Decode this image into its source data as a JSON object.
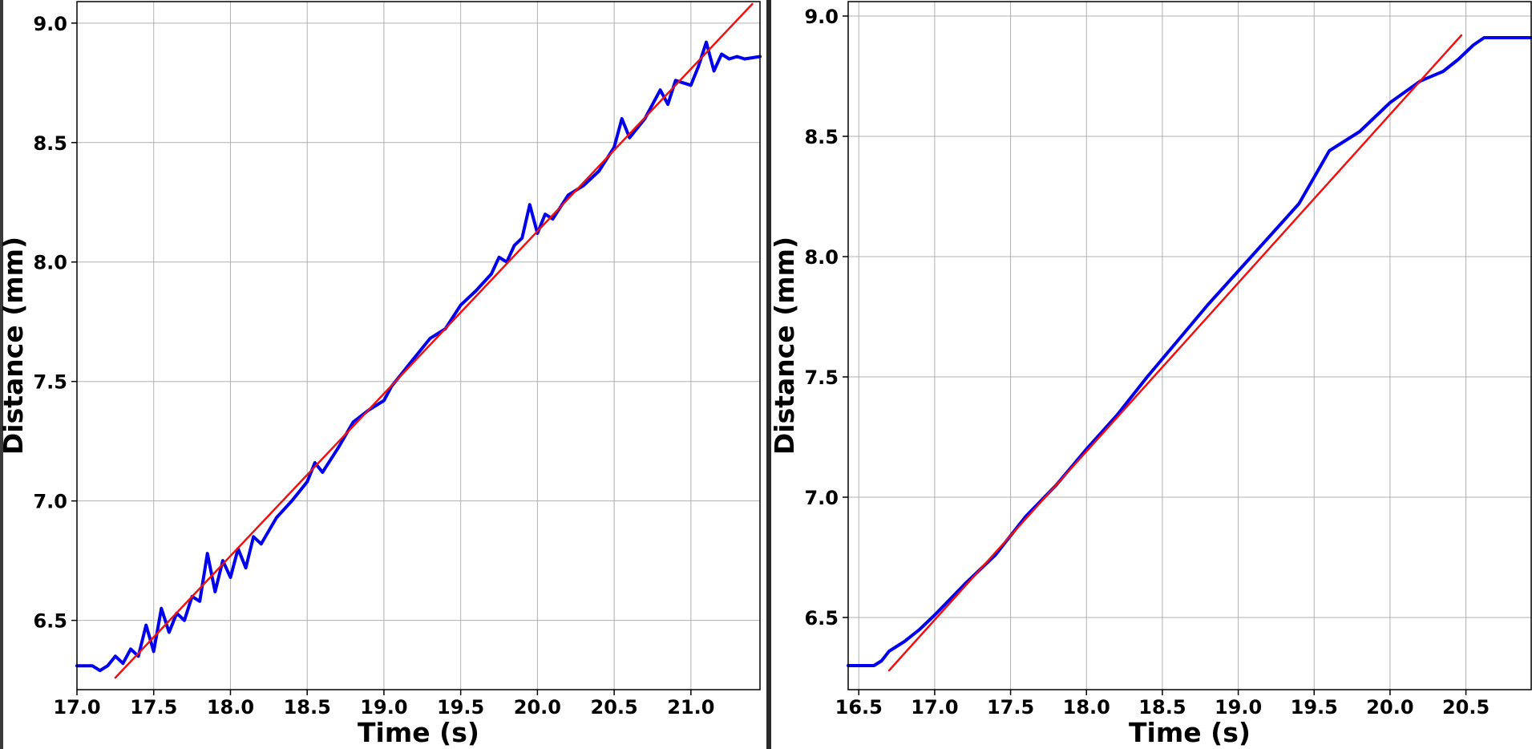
{
  "chart_data": [
    {
      "type": "line",
      "xlabel": "Time (s)",
      "ylabel": "Distance (mm)",
      "xlim": [
        17.0,
        21.45
      ],
      "ylim": [
        6.21,
        9.09
      ],
      "xticks": [
        "17.0",
        "17.5",
        "18.0",
        "18.5",
        "19.0",
        "19.5",
        "20.0",
        "20.5",
        "21.0"
      ],
      "yticks": [
        "6.5",
        "7.0",
        "7.5",
        "8.0",
        "8.5",
        "9.0"
      ],
      "grid": true,
      "colors": {
        "data": "#0000ee",
        "fit": "#ee1111",
        "grid": "#b0b0b0"
      },
      "series": [
        {
          "style": "measured",
          "x": [
            17.0,
            17.1,
            17.15,
            17.2,
            17.25,
            17.3,
            17.35,
            17.4,
            17.45,
            17.5,
            17.55,
            17.6,
            17.65,
            17.7,
            17.75,
            17.8,
            17.85,
            17.9,
            17.95,
            18.0,
            18.05,
            18.1,
            18.15,
            18.2,
            18.3,
            18.4,
            18.5,
            18.55,
            18.6,
            18.7,
            18.8,
            18.9,
            19.0,
            19.05,
            19.1,
            19.2,
            19.3,
            19.4,
            19.5,
            19.6,
            19.7,
            19.75,
            19.8,
            19.85,
            19.9,
            19.95,
            20.0,
            20.05,
            20.1,
            20.2,
            20.3,
            20.4,
            20.5,
            20.55,
            20.6,
            20.7,
            20.8,
            20.85,
            20.9,
            21.0,
            21.05,
            21.1,
            21.15,
            21.2,
            21.25,
            21.3,
            21.35,
            21.45
          ],
          "y": [
            6.31,
            6.31,
            6.29,
            6.31,
            6.35,
            6.32,
            6.38,
            6.35,
            6.48,
            6.37,
            6.55,
            6.45,
            6.53,
            6.5,
            6.6,
            6.58,
            6.78,
            6.62,
            6.75,
            6.68,
            6.8,
            6.72,
            6.85,
            6.82,
            6.93,
            7.0,
            7.08,
            7.16,
            7.12,
            7.22,
            7.33,
            7.38,
            7.42,
            7.48,
            7.52,
            7.6,
            7.68,
            7.72,
            7.82,
            7.88,
            7.95,
            8.02,
            8.0,
            8.07,
            8.1,
            8.24,
            8.12,
            8.2,
            8.18,
            8.28,
            8.32,
            8.38,
            8.48,
            8.6,
            8.52,
            8.6,
            8.72,
            8.66,
            8.76,
            8.74,
            8.82,
            8.92,
            8.8,
            8.87,
            8.85,
            8.86,
            8.85,
            8.86
          ]
        },
        {
          "style": "fit",
          "x": [
            17.25,
            21.4
          ],
          "y": [
            6.26,
            9.08
          ]
        }
      ]
    },
    {
      "type": "line",
      "xlabel": "Time (s)",
      "ylabel": "Distance (mm)",
      "xlim": [
        16.43,
        20.93
      ],
      "ylim": [
        6.2,
        9.06
      ],
      "xticks": [
        "16.5",
        "17.0",
        "17.5",
        "18.0",
        "18.5",
        "19.0",
        "19.5",
        "20.0",
        "20.5"
      ],
      "yticks": [
        "6.5",
        "7.0",
        "7.5",
        "8.0",
        "8.5",
        "9.0"
      ],
      "grid": true,
      "colors": {
        "data": "#0000ee",
        "fit": "#ee1111",
        "grid": "#b0b0b0"
      },
      "series": [
        {
          "style": "measured",
          "x": [
            16.43,
            16.6,
            16.65,
            16.7,
            16.8,
            16.9,
            17.0,
            17.2,
            17.4,
            17.6,
            17.8,
            18.0,
            18.2,
            18.4,
            18.6,
            18.8,
            19.0,
            19.2,
            19.4,
            19.5,
            19.6,
            19.8,
            20.0,
            20.2,
            20.35,
            20.45,
            20.55,
            20.62,
            20.7,
            20.93
          ],
          "y": [
            6.3,
            6.3,
            6.32,
            6.36,
            6.4,
            6.45,
            6.51,
            6.64,
            6.76,
            6.92,
            7.05,
            7.2,
            7.34,
            7.5,
            7.65,
            7.8,
            7.94,
            8.08,
            8.22,
            8.33,
            8.44,
            8.52,
            8.64,
            8.73,
            8.77,
            8.82,
            8.88,
            8.91,
            8.91,
            8.91
          ]
        },
        {
          "style": "fit",
          "x": [
            16.7,
            20.47
          ],
          "y": [
            6.28,
            8.92
          ]
        }
      ]
    }
  ]
}
